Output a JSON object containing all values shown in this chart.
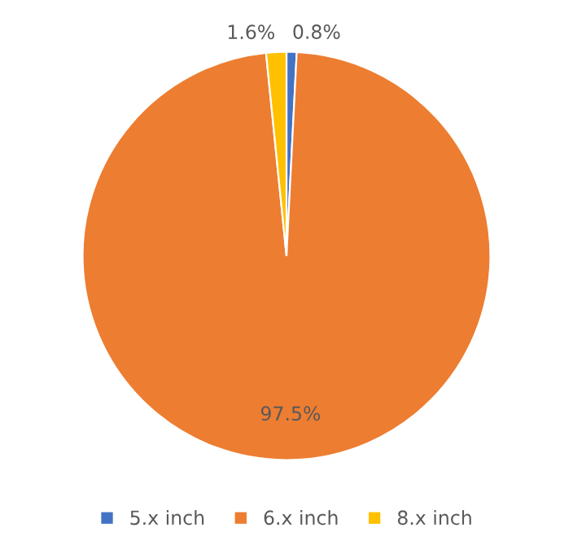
{
  "chart_data": {
    "type": "pie",
    "categories": [
      "5.x inch",
      "6.x inch",
      "8.x inch"
    ],
    "values": [
      0.8,
      97.5,
      1.6
    ],
    "colors": [
      "#4472c4",
      "#ed7d31",
      "#ffc000"
    ],
    "value_labels": [
      "0.8%",
      "97.5%",
      "1.6%"
    ],
    "legend": "bottom"
  }
}
